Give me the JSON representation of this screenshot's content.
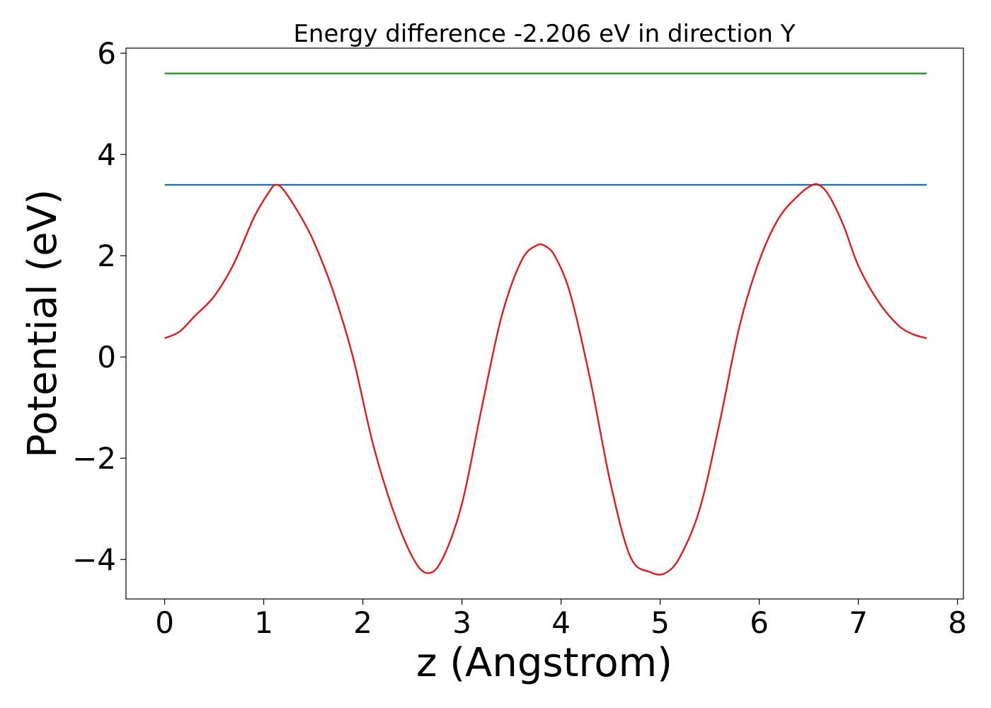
{
  "chart_data": {
    "type": "line",
    "title": "Energy difference -2.206 eV in direction Y",
    "xlabel": "z (Angstrom)",
    "ylabel": "Potential (eV)",
    "xlim": [
      -0.39,
      8.06
    ],
    "ylim": [
      -4.78,
      6.1
    ],
    "xticks": [
      0,
      1,
      2,
      3,
      4,
      5,
      6,
      7,
      8
    ],
    "yticks": [
      -4,
      -2,
      0,
      2,
      4,
      6
    ],
    "grid": false,
    "legend": "none",
    "series": [
      {
        "color": "#2ca02c",
        "style": "horizontal-line",
        "x": [
          0.0,
          7.69
        ],
        "y": [
          5.6,
          5.6
        ]
      },
      {
        "color": "#1f77b4",
        "style": "horizontal-line",
        "x": [
          0.0,
          7.69
        ],
        "y": [
          3.4,
          3.4
        ]
      },
      {
        "color": "#e31a1c",
        "style": "curve",
        "x": [
          0.0,
          0.15,
          0.3,
          0.5,
          0.7,
          0.9,
          1.05,
          1.12,
          1.2,
          1.35,
          1.5,
          1.7,
          1.9,
          2.1,
          2.3,
          2.5,
          2.65,
          2.8,
          3.0,
          3.2,
          3.4,
          3.6,
          3.75,
          3.85,
          3.95,
          4.1,
          4.3,
          4.5,
          4.7,
          4.9,
          5.05,
          5.2,
          5.4,
          5.6,
          5.8,
          6.0,
          6.2,
          6.4,
          6.52,
          6.6,
          6.7,
          6.85,
          7.0,
          7.2,
          7.4,
          7.55,
          7.69
        ],
        "y": [
          0.37,
          0.5,
          0.8,
          1.2,
          1.85,
          2.75,
          3.25,
          3.4,
          3.3,
          2.85,
          2.3,
          1.3,
          0.0,
          -1.7,
          -3.0,
          -3.95,
          -4.27,
          -4.0,
          -2.9,
          -1.0,
          0.8,
          1.9,
          2.2,
          2.18,
          1.95,
          1.2,
          -0.5,
          -2.5,
          -3.95,
          -4.25,
          -4.27,
          -3.95,
          -3.0,
          -1.3,
          0.6,
          1.9,
          2.75,
          3.2,
          3.38,
          3.4,
          3.2,
          2.6,
          1.8,
          1.1,
          0.63,
          0.45,
          0.37
        ]
      }
    ]
  }
}
